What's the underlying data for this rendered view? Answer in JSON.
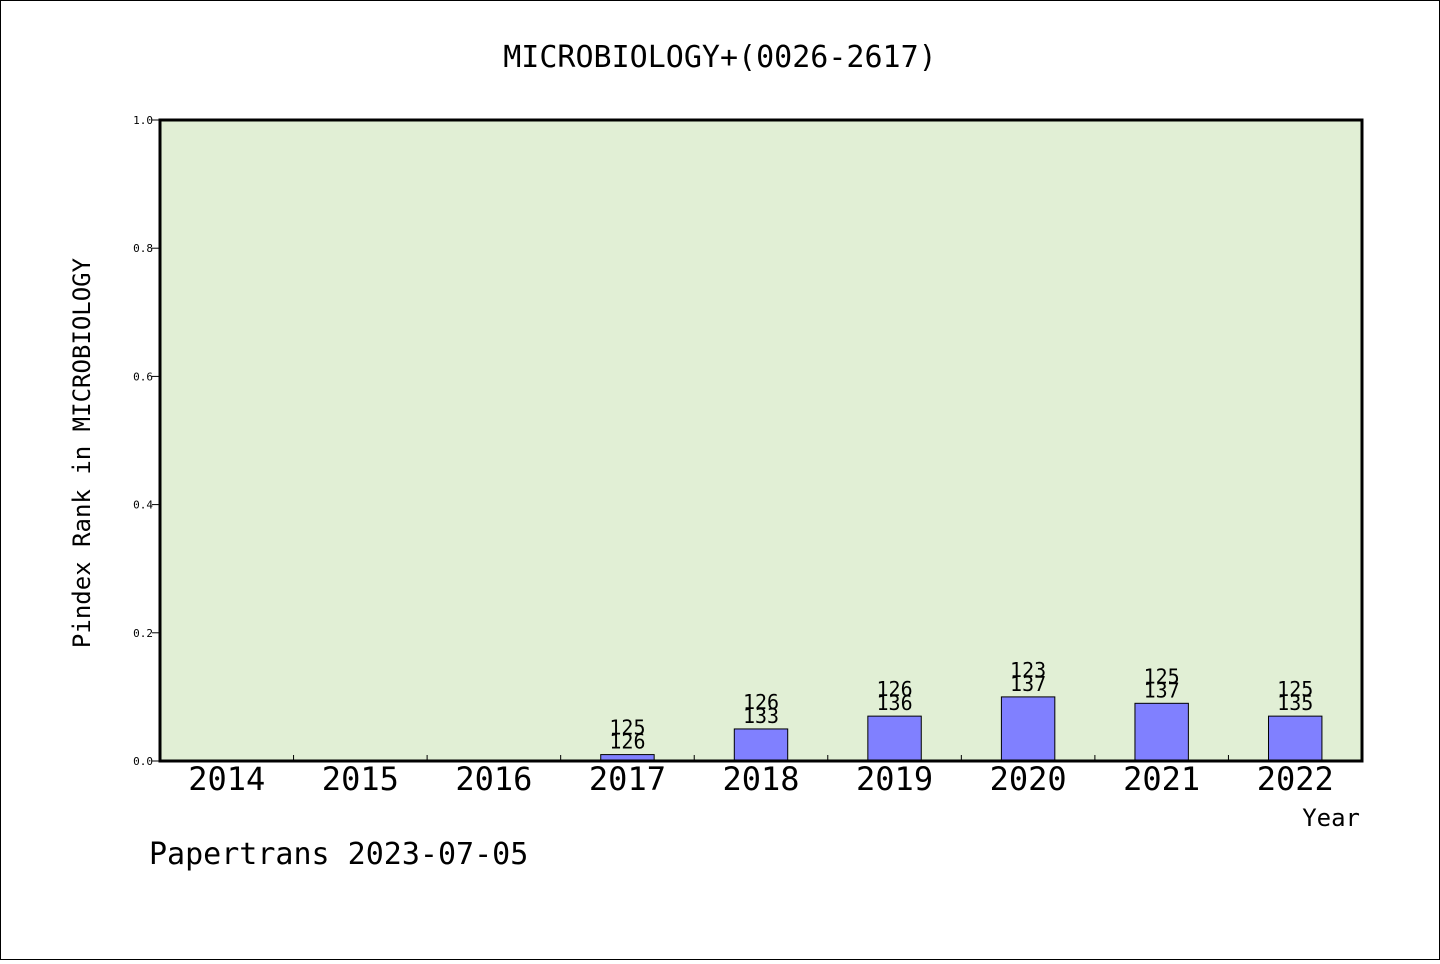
{
  "chart_data": {
    "type": "bar",
    "title": "MICROBIOLOGY+(0026-2617)",
    "xlabel": "Year",
    "ylabel": "Pindex Rank in MICROBIOLOGY",
    "categories": [
      "2014",
      "2015",
      "2016",
      "2017",
      "2018",
      "2019",
      "2020",
      "2021",
      "2022"
    ],
    "values": [
      0,
      0,
      0,
      0.01,
      0.05,
      0.07,
      0.1,
      0.09,
      0.07
    ],
    "labels_top": [
      "",
      "",
      "",
      "125",
      "126",
      "126",
      "123",
      "125",
      "125"
    ],
    "labels_bottom": [
      "",
      "",
      "",
      "126",
      "133",
      "136",
      "137",
      "137",
      "135"
    ],
    "ylim": [
      0,
      1.0
    ],
    "yticks": [
      "0.0",
      "0.2",
      "0.4",
      "0.6",
      "0.8",
      "1.0"
    ],
    "grid": false,
    "plot_background": "#e1efd5",
    "bar_color": "#8080ff"
  },
  "footer": "Papertrans 2023-07-05"
}
